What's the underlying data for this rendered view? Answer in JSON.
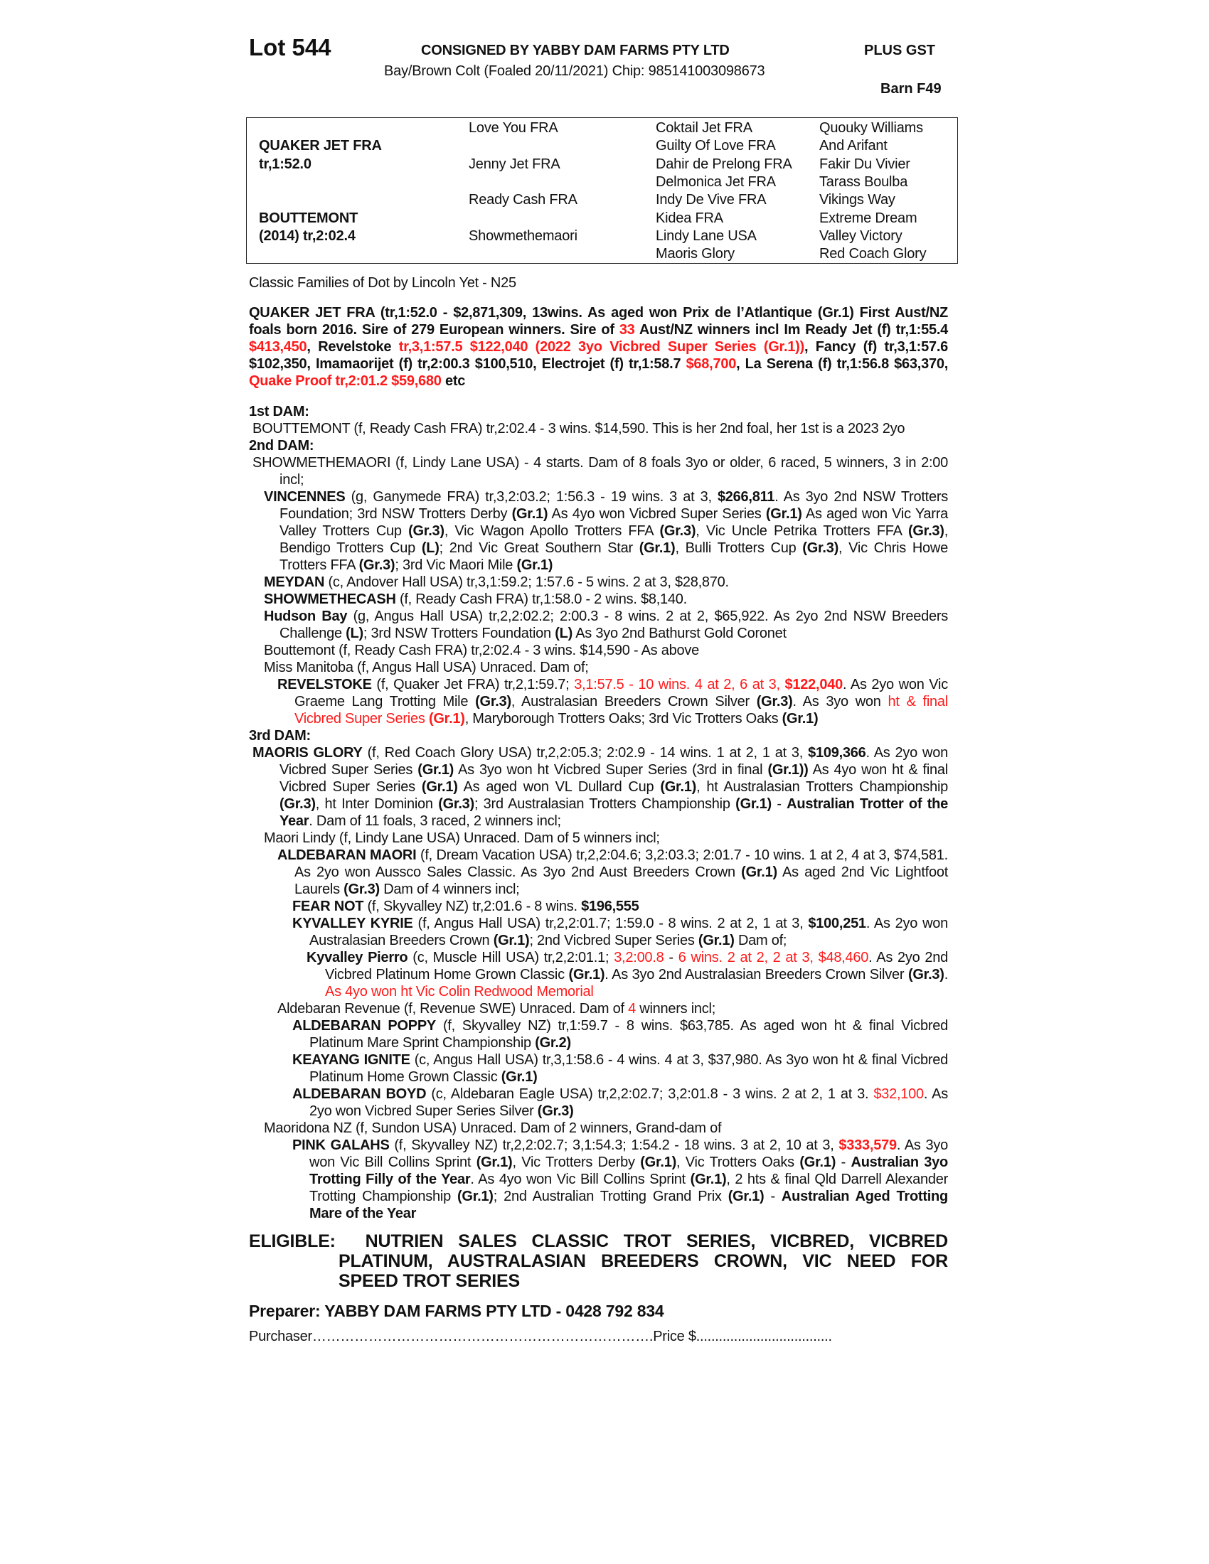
{
  "header": {
    "lot": "Lot 544",
    "consigned": "CONSIGNED BY YABBY DAM FARMS PTY LTD",
    "gst": "PLUS GST",
    "description": "Bay/Brown Colt (Foaled 20/11/2021) Chip: 985141003098673",
    "barn": "Barn F49"
  },
  "pedigree": {
    "sire": "QUAKER JET FRA",
    "sire_record": "tr,1:52.0",
    "dam": "BOUTTEMONT",
    "dam_record": "(2014) tr,2:02.4",
    "gen2": [
      "Love You FRA",
      "Jenny Jet FRA",
      "Ready Cash FRA",
      "Showmethemaori"
    ],
    "gen3": [
      "Coktail Jet FRA",
      "Guilty Of Love FRA",
      "Dahir de Prelong FRA",
      "Delmonica Jet FRA",
      "Indy De Vive FRA",
      "Kidea FRA",
      "Lindy Lane USA",
      "Maoris Glory"
    ],
    "gen4": [
      "Quouky Williams",
      "And Arifant",
      "Fakir Du Vivier",
      "Tarass Boulba",
      "Vikings Way",
      "Extreme Dream",
      "Valley Victory",
      "Red Coach Glory"
    ]
  },
  "family": "Classic Families of Dot by Lincoln Yet - N25",
  "sire_paragraph": [
    [
      "QUAKER JET FRA (tr,1:52.0 - $2,871,309, 13wins. As aged won Prix de l’Atlantique (Gr.1) First Aust/NZ foals born 2016. Sire of 279 European winners. Sire of ",
      "b"
    ],
    [
      "33",
      "rb"
    ],
    [
      " Aust/NZ winners incl Im Ready Jet (f) tr,1:55.4 ",
      "b"
    ],
    [
      "$413,450",
      "rb"
    ],
    [
      ", Revelstoke ",
      "b"
    ],
    [
      "tr,3,1:57.5 $122,040 (2022 3yo Vicbred Super Series (Gr.1))",
      "rb"
    ],
    [
      ", Fancy (f) tr,3,1:57.6 $102,350, Imamaorijet (f) tr,2:00.3 $100,510, Electrojet (f) tr,1:58.7 ",
      "b"
    ],
    [
      "$68,700",
      "rb"
    ],
    [
      ",  La Serena (f) tr,1:56.8 $63,370, ",
      "b"
    ],
    [
      "Quake Proof tr,2:01.2 $59,680",
      "rb"
    ],
    [
      " etc",
      "b"
    ]
  ],
  "entries": [
    {
      "heading": "1st DAM:"
    },
    {
      "level": 0,
      "runs": [
        [
          "BOUTTEMONT (f, Ready Cash FRA) tr,2:02.4 - 3 wins. $14,590. This is her 2nd foal, her 1st is a 2023 2yo",
          ""
        ]
      ]
    },
    {
      "heading": "2nd DAM:"
    },
    {
      "level": 0,
      "runs": [
        [
          "SHOWMETHEMAORI (f, Lindy Lane USA) - 4 starts. Dam of 8 foals 3yo or older, 6 raced, 5 winners, 3 in 2:00 incl;",
          ""
        ]
      ]
    },
    {
      "level": 1,
      "runs": [
        [
          "VINCENNES",
          "b"
        ],
        [
          " (g, Ganymede FRA) tr,3,2:03.2; 1:56.3 - 19 wins. 3 at 3, ",
          ""
        ],
        [
          "$266,811",
          "b"
        ],
        [
          ". As 3yo 2nd NSW Trotters Foundation; 3rd NSW Trotters Derby ",
          ""
        ],
        [
          "(Gr.1)",
          "b"
        ],
        [
          " As 4yo won Vicbred Super Series ",
          ""
        ],
        [
          "(Gr.1)",
          "b"
        ],
        [
          " As aged won Vic Yarra Valley Trotters Cup ",
          ""
        ],
        [
          "(Gr.3)",
          "b"
        ],
        [
          ", Vic Wagon Apollo Trotters FFA ",
          ""
        ],
        [
          "(Gr.3)",
          "b"
        ],
        [
          ", Vic Uncle Petrika Trotters FFA ",
          ""
        ],
        [
          "(Gr.3)",
          "b"
        ],
        [
          ", Bendigo Trotters Cup ",
          ""
        ],
        [
          "(L)",
          "b"
        ],
        [
          "; 2nd Vic Great Southern Star ",
          ""
        ],
        [
          "(Gr.1)",
          "b"
        ],
        [
          ", Bulli Trotters Cup ",
          ""
        ],
        [
          "(Gr.3)",
          "b"
        ],
        [
          ", Vic Chris Howe Trotters FFA ",
          ""
        ],
        [
          "(Gr.3)",
          "b"
        ],
        [
          "; 3rd Vic Maori Mile ",
          ""
        ],
        [
          "(Gr.1)",
          "b"
        ]
      ]
    },
    {
      "level": 1,
      "runs": [
        [
          "MEYDAN",
          "b"
        ],
        [
          " (c, Andover Hall USA) tr,3,1:59.2; 1:57.6 - 5 wins. 2 at 3, $28,870.",
          ""
        ]
      ]
    },
    {
      "level": 1,
      "runs": [
        [
          "SHOWMETHECASH",
          "b"
        ],
        [
          " (f, Ready Cash FRA) tr,1:58.0 - 2 wins. $8,140.",
          ""
        ]
      ]
    },
    {
      "level": 1,
      "runs": [
        [
          "Hudson Bay",
          "b"
        ],
        [
          " (g, Angus Hall USA) tr,2,2:02.2; 2:00.3 - 8 wins. 2 at 2, $65,922. As 2yo 2nd NSW Breeders Challenge ",
          ""
        ],
        [
          "(L)",
          "b"
        ],
        [
          "; 3rd NSW Trotters Foundation ",
          ""
        ],
        [
          "(L)",
          "b"
        ],
        [
          " As 3yo 2nd Bathurst Gold Coronet",
          ""
        ]
      ]
    },
    {
      "level": 1,
      "runs": [
        [
          "Bouttemont (f, Ready Cash FRA) tr,2:02.4 - 3 wins. $14,590 - As above",
          ""
        ]
      ]
    },
    {
      "level": 1,
      "runs": [
        [
          "Miss Manitoba (f, Angus Hall USA) Unraced. Dam of;",
          ""
        ]
      ]
    },
    {
      "level": 2,
      "runs": [
        [
          "REVELSTOKE",
          "b"
        ],
        [
          " (f, Quaker Jet FRA) tr,2,1:59.7; ",
          ""
        ],
        [
          "3,1:57.5 - 10 wins. 4 at 2, 6 at 3, ",
          "r"
        ],
        [
          "$122,040",
          "rb"
        ],
        [
          ". As 2yo won Vic Graeme Lang Trotting Mile ",
          ""
        ],
        [
          "(Gr.3)",
          "b"
        ],
        [
          ", Australasian Breeders Crown Silver ",
          ""
        ],
        [
          "(Gr.3)",
          "b"
        ],
        [
          ". As 3yo won ",
          ""
        ],
        [
          "ht & final Vicbred Super Series ",
          "r"
        ],
        [
          "(Gr.1)",
          "rb"
        ],
        [
          ", Maryborough Trotters Oaks; 3rd Vic Trotters Oaks ",
          ""
        ],
        [
          "(Gr.1)",
          "b"
        ]
      ]
    },
    {
      "heading": "3rd DAM:"
    },
    {
      "level": 0,
      "runs": [
        [
          "MAORIS GLORY",
          "b"
        ],
        [
          " (f, Red Coach Glory USA) tr,2,2:05.3; 2:02.9 - 14 wins. 1 at 2, 1 at 3, ",
          ""
        ],
        [
          "$109,366",
          "b"
        ],
        [
          ". As 2yo won Vicbred Super Series ",
          ""
        ],
        [
          "(Gr.1)",
          "b"
        ],
        [
          " As 3yo won ht Vicbred Super Series (3rd in final ",
          ""
        ],
        [
          "(Gr.1))",
          "b"
        ],
        [
          " As 4yo won ht & final Vicbred Super Series ",
          ""
        ],
        [
          "(Gr.1)",
          "b"
        ],
        [
          " As aged won VL Dullard Cup ",
          ""
        ],
        [
          "(Gr.1)",
          "b"
        ],
        [
          ", ht Australasian Trotters Championship ",
          ""
        ],
        [
          "(Gr.3)",
          "b"
        ],
        [
          ", ht Inter Dominion ",
          ""
        ],
        [
          "(Gr.3)",
          "b"
        ],
        [
          "; 3rd Australasian Trotters Championship ",
          ""
        ],
        [
          "(Gr.1)",
          "b"
        ],
        [
          " - ",
          ""
        ],
        [
          "Australian Trotter of the Year",
          "b"
        ],
        [
          ". Dam of 11 foals, 3 raced, 2 winners incl;",
          ""
        ]
      ]
    },
    {
      "level": 1,
      "runs": [
        [
          "Maori Lindy (f, Lindy Lane USA) Unraced. Dam of 5 winners incl;",
          ""
        ]
      ]
    },
    {
      "level": 2,
      "runs": [
        [
          "ALDEBARAN MAORI",
          "b"
        ],
        [
          " (f, Dream Vacation USA) tr,2,2:04.6; 3,2:03.3; 2:01.7 - 10 wins. 1 at 2, 4 at 3, $74,581. As 2yo won Aussco Sales Classic. As 3yo 2nd Aust Breeders Crown ",
          ""
        ],
        [
          "(Gr.1)",
          "b"
        ],
        [
          " As aged 2nd Vic Lightfoot Laurels ",
          ""
        ],
        [
          "(Gr.3)",
          "b"
        ],
        [
          " Dam of 4 winners incl;",
          ""
        ]
      ]
    },
    {
      "level": 3,
      "runs": [
        [
          "FEAR NOT",
          "b"
        ],
        [
          " (f, Skyvalley NZ) tr,2:01.6 - 8 wins. ",
          ""
        ],
        [
          "$196,555",
          "b"
        ]
      ]
    },
    {
      "level": 3,
      "runs": [
        [
          "KYVALLEY KYRIE",
          "b"
        ],
        [
          " (f, Angus Hall USA) tr,2,2:01.7; 1:59.0 - 8 wins. 2 at 2, 1 at 3, ",
          ""
        ],
        [
          "$100,251",
          "b"
        ],
        [
          ". As 2yo won Australasian Breeders Crown ",
          ""
        ],
        [
          "(Gr.1)",
          "b"
        ],
        [
          "; 2nd Vicbred Super Series ",
          ""
        ],
        [
          "(Gr.1)",
          "b"
        ],
        [
          " Dam of;",
          ""
        ]
      ]
    },
    {
      "level": 4,
      "runs": [
        [
          "Kyvalley Pierro",
          "b"
        ],
        [
          " (c, Muscle Hill USA) tr,2,2:01.1; ",
          ""
        ],
        [
          "3,2:00.8",
          "r"
        ],
        [
          " - ",
          ""
        ],
        [
          "6 wins. 2 at 2, 2 at 3, $48,460",
          "r"
        ],
        [
          ". As 2yo 2nd Vicbred Platinum Home Grown Classic ",
          ""
        ],
        [
          "(Gr.1)",
          "b"
        ],
        [
          ". As 3yo 2nd Australasian Breeders Crown Silver ",
          ""
        ],
        [
          "(Gr.3)",
          "b"
        ],
        [
          ". ",
          ""
        ],
        [
          "As 4yo won ht Vic Colin Redwood Memorial",
          "r"
        ]
      ]
    },
    {
      "level": 2,
      "runs": [
        [
          "Aldebaran Revenue (f, Revenue SWE) Unraced. Dam of ",
          ""
        ],
        [
          "4",
          "r"
        ],
        [
          " winners incl;",
          ""
        ]
      ]
    },
    {
      "level": 3,
      "runs": [
        [
          "ALDEBARAN POPPY",
          "b"
        ],
        [
          " (f, Skyvalley NZ) tr,1:59.7 - 8 wins. $63,785. As aged won ht & final Vicbred Platinum Mare Sprint Championship ",
          ""
        ],
        [
          "(Gr.2)",
          "b"
        ]
      ]
    },
    {
      "level": 3,
      "runs": [
        [
          "KEAYANG IGNITE",
          "b"
        ],
        [
          " (c, Angus Hall USA) tr,3,1:58.6 - 4 wins. 4 at 3, $37,980. As 3yo won ht & final Vicbred Platinum Home Grown Classic ",
          ""
        ],
        [
          "(Gr.1)",
          "b"
        ]
      ]
    },
    {
      "level": 3,
      "runs": [
        [
          "ALDEBARAN BOYD",
          "b"
        ],
        [
          " (c, Aldebaran Eagle USA) tr,2,2:02.7; 3,2:01.8 - 3 wins. 2 at 2, 1 at 3. ",
          ""
        ],
        [
          "$32,100",
          "r"
        ],
        [
          ". As 2yo won Vicbred Super Series Silver ",
          ""
        ],
        [
          "(Gr.3)",
          "b"
        ]
      ]
    },
    {
      "level": 1,
      "runs": [
        [
          "Maoridona NZ (f, Sundon USA) Unraced. Dam of 2 winners, Grand-dam of",
          ""
        ]
      ]
    },
    {
      "level": 3,
      "runs": [
        [
          "PINK GALAHS",
          "b"
        ],
        [
          " (f, Skyvalley NZ) tr,2,2:02.7; 3,1:54.3; 1:54.2 - 18 wins. 3 at 2, 10 at 3, ",
          ""
        ],
        [
          "$333,579",
          "rb"
        ],
        [
          ". As 3yo won Vic Bill Collins Sprint ",
          ""
        ],
        [
          "(Gr.1)",
          "b"
        ],
        [
          ", Vic Trotters Derby ",
          ""
        ],
        [
          "(Gr.1)",
          "b"
        ],
        [
          ", Vic Trotters Oaks ",
          ""
        ],
        [
          "(Gr.1)",
          "b"
        ],
        [
          " - ",
          ""
        ],
        [
          "Australian 3yo Trotting Filly of the Year",
          "b"
        ],
        [
          ". As 4yo won Vic Bill Collins Sprint ",
          ""
        ],
        [
          "(Gr.1)",
          "b"
        ],
        [
          ", 2 hts & final Qld Darrell Alexander Trotting Championship ",
          ""
        ],
        [
          "(Gr.1)",
          "b"
        ],
        [
          "; 2nd Australian Trotting Grand Prix ",
          ""
        ],
        [
          "(Gr.1)",
          "b"
        ],
        [
          " - ",
          ""
        ],
        [
          "Australian Aged Trotting Mare of the Year",
          "b"
        ]
      ]
    }
  ],
  "eligible": {
    "label": "ELIGIBLE:",
    "text": "NUTRIEN SALES CLASSIC TROT SERIES, VICBRED, VICBRED PLATINUM, AUSTRALASIAN BREEDERS CROWN, VIC NEED FOR SPEED TROT SERIES"
  },
  "preparer": "Preparer: YABBY DAM FARMS PTY LTD - 0428 792 834",
  "purchase": {
    "purchaser_label": "Purchaser……………………………………………………………….",
    "price_label": "Price $...................................."
  },
  "colors": {
    "highlight": "#ff1a1a",
    "text": "#111111"
  }
}
